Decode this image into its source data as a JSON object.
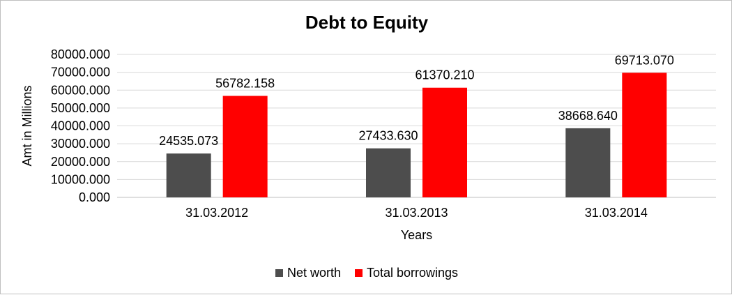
{
  "chart_data": {
    "type": "bar",
    "title": "Debt to Equity",
    "xlabel": "Years",
    "ylabel": "Amt in Millions",
    "categories": [
      "31.03.2012",
      "31.03.2013",
      "31.03.2014"
    ],
    "series": [
      {
        "name": "Net worth",
        "color": "#4d4d4d",
        "values": [
          24535.073,
          27433.63,
          38668.64
        ]
      },
      {
        "name": "Total borrowings",
        "color": "#ff0000",
        "values": [
          56782.158,
          61370.21,
          69713.07
        ]
      }
    ],
    "data_labels": [
      [
        "24535.073",
        "27433.630",
        "38668.640"
      ],
      [
        "56782.158",
        "61370.210",
        "69713.070"
      ]
    ],
    "y_ticks": [
      "0.000",
      "10000.000",
      "20000.000",
      "30000.000",
      "40000.000",
      "50000.000",
      "60000.000",
      "70000.000",
      "80000.000"
    ],
    "ylim": [
      0,
      80000
    ],
    "grid": true,
    "gridline_color": "#d9d9d9",
    "legend_position": "bottom"
  }
}
